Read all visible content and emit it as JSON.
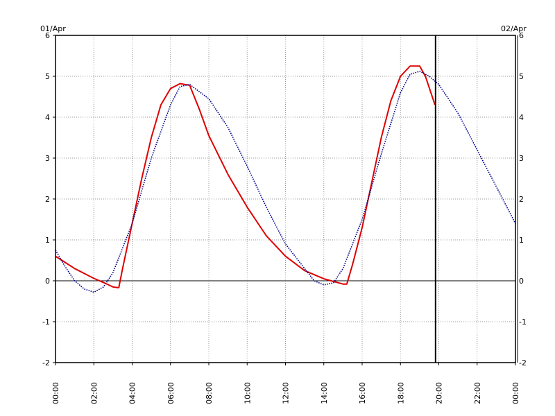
{
  "chart_data": {
    "type": "line",
    "date_start_label": "01/Apr",
    "date_end_label": "02/Apr",
    "x_tick_labels": [
      "00:00",
      "02:00",
      "04:00",
      "06:00",
      "08:00",
      "10:00",
      "12:00",
      "14:00",
      "16:00",
      "18:00",
      "20:00",
      "22:00",
      "00:00"
    ],
    "y_tick_labels": [
      "6",
      "5",
      "4",
      "3",
      "2",
      "1",
      "0",
      "-1",
      "-2"
    ],
    "ylim": [
      -2,
      6
    ],
    "xlim_hours": [
      0,
      24
    ],
    "grid": true,
    "x_tick_hours": [
      0,
      2,
      4,
      6,
      8,
      10,
      12,
      14,
      16,
      18,
      20,
      22,
      24
    ],
    "y_ticks": [
      6,
      5,
      4,
      3,
      2,
      1,
      0,
      -1,
      -2
    ],
    "zero_line": 0,
    "current_time_hours": 19.83,
    "colors": {
      "red_series": "#dd0000",
      "blue_series": "#00008b",
      "grid": "#999999",
      "axis": "#000000"
    },
    "series": [
      {
        "color": "red",
        "style": "solid",
        "x": [
          0.0,
          0.5,
          1.0,
          1.5,
          2.0,
          2.5,
          3.0,
          3.3,
          3.5,
          4.0,
          4.5,
          5.0,
          5.5,
          6.0,
          6.5,
          7.0,
          7.5,
          8.0,
          9.0,
          10.0,
          11.0,
          12.0,
          13.0,
          14.0,
          15.0,
          15.2,
          15.5,
          16.0,
          16.5,
          17.0,
          17.5,
          18.0,
          18.5,
          19.0,
          19.3,
          19.8
        ],
        "y": [
          0.6,
          0.45,
          0.3,
          0.18,
          0.06,
          -0.04,
          -0.15,
          -0.17,
          0.3,
          1.4,
          2.5,
          3.5,
          4.3,
          4.7,
          4.82,
          4.78,
          4.2,
          3.55,
          2.6,
          1.8,
          1.1,
          0.6,
          0.25,
          0.05,
          -0.08,
          -0.08,
          0.4,
          1.3,
          2.4,
          3.5,
          4.4,
          5.0,
          5.25,
          5.25,
          5.0,
          4.3
        ]
      },
      {
        "color": "blue",
        "style": "dotted",
        "x": [
          0.0,
          0.5,
          1.0,
          1.5,
          2.0,
          2.5,
          3.0,
          4.0,
          5.0,
          6.0,
          6.5,
          7.0,
          8.0,
          9.0,
          10.0,
          11.0,
          12.0,
          13.0,
          13.5,
          14.0,
          14.5,
          15.0,
          16.0,
          17.0,
          18.0,
          18.5,
          19.0,
          19.5,
          20.0,
          21.0,
          22.0,
          23.0,
          24.0
        ],
        "y": [
          0.75,
          0.35,
          0.0,
          -0.2,
          -0.28,
          -0.15,
          0.2,
          1.4,
          3.0,
          4.3,
          4.75,
          4.8,
          4.45,
          3.75,
          2.8,
          1.8,
          0.9,
          0.3,
          0.0,
          -0.1,
          -0.05,
          0.3,
          1.5,
          3.1,
          4.6,
          5.05,
          5.12,
          5.0,
          4.8,
          4.1,
          3.2,
          2.3,
          1.4
        ]
      }
    ]
  }
}
